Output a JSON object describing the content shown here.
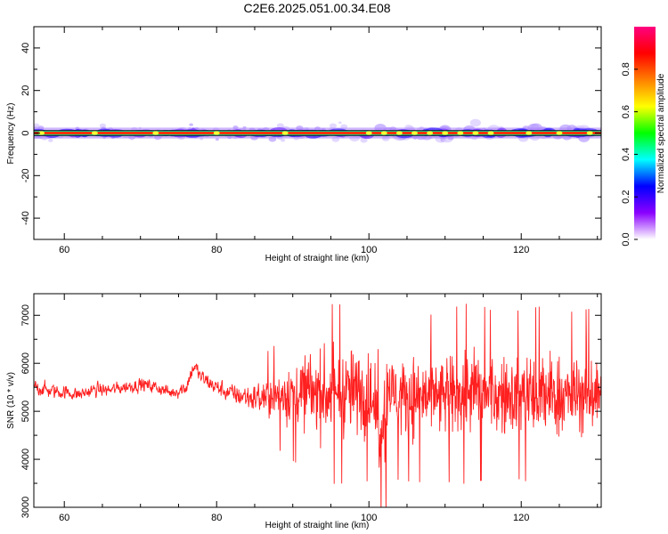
{
  "title": "C2E6.2025.051.00.34.E08",
  "chart_data": [
    {
      "type": "heatmap",
      "xlabel": "Height of straight line (km)",
      "ylabel": "Frequency (Hz)",
      "xlim": [
        56,
        130.5
      ],
      "ylim": [
        -50,
        50
      ],
      "xticks": [
        60,
        80,
        100,
        120
      ],
      "yticks": [
        40,
        20,
        0,
        -20,
        -40
      ],
      "grid": false,
      "band": {
        "center_hz": 0,
        "core_halfwidth_hz": 0.6,
        "spread_halfwidth_hz": 3
      },
      "hotspots_km": [
        57,
        64,
        72,
        80,
        89,
        100,
        102,
        104,
        106,
        108,
        110,
        112,
        114,
        116,
        121,
        125,
        129
      ],
      "colorbar": {
        "label": "Normalized spectral amplitude",
        "range": [
          0,
          1
        ],
        "ticks": [
          "0.0",
          "0.2",
          "0.4",
          "0.6",
          "0.8"
        ],
        "colors": [
          "#ffffff",
          "#8a00ff",
          "#0000ff",
          "#00ffff",
          "#00ff00",
          "#ffff00",
          "#ff8000",
          "#ff0000",
          "#ff0080"
        ]
      }
    },
    {
      "type": "line",
      "xlabel": "Height of straight line (km)",
      "ylabel": "SNR (10 * v/v)",
      "xlim": [
        56,
        130.5
      ],
      "ylim": [
        3000,
        7450
      ],
      "xticks": [
        60,
        80,
        100,
        120
      ],
      "yticks": [
        3000,
        4000,
        5000,
        6000,
        7000
      ],
      "color": "#ff2020",
      "series": [
        {
          "x": [
            56,
            58,
            60,
            62,
            64,
            66,
            68,
            70,
            72,
            74,
            76,
            77,
            78,
            80,
            82,
            84,
            86,
            88,
            90,
            92,
            94,
            96,
            98,
            100,
            101,
            101.5,
            102,
            102.5,
            103,
            104,
            106,
            108,
            110,
            112,
            114,
            116,
            118,
            120,
            122,
            124,
            126,
            128,
            130
          ],
          "mean": [
            5520,
            5430,
            5400,
            5350,
            5450,
            5440,
            5510,
            5560,
            5510,
            5380,
            5500,
            5950,
            5700,
            5500,
            5360,
            5300,
            5280,
            5320,
            5400,
            5420,
            5380,
            5350,
            5420,
            5300,
            5000,
            4500,
            5100,
            5500,
            5400,
            5300,
            5300,
            5250,
            5300,
            5350,
            5400,
            5350,
            5300,
            5350,
            5300,
            5350,
            5300,
            5350,
            5400
          ],
          "noise": [
            180,
            170,
            160,
            150,
            160,
            150,
            150,
            160,
            150,
            150,
            180,
            200,
            190,
            190,
            230,
            300,
            400,
            500,
            650,
            750,
            850,
            850,
            850,
            800,
            600,
            800,
            1300,
            900,
            750,
            800,
            800,
            800,
            800,
            850,
            850,
            800,
            800,
            800,
            850,
            850,
            800,
            800,
            800
          ]
        }
      ]
    }
  ]
}
